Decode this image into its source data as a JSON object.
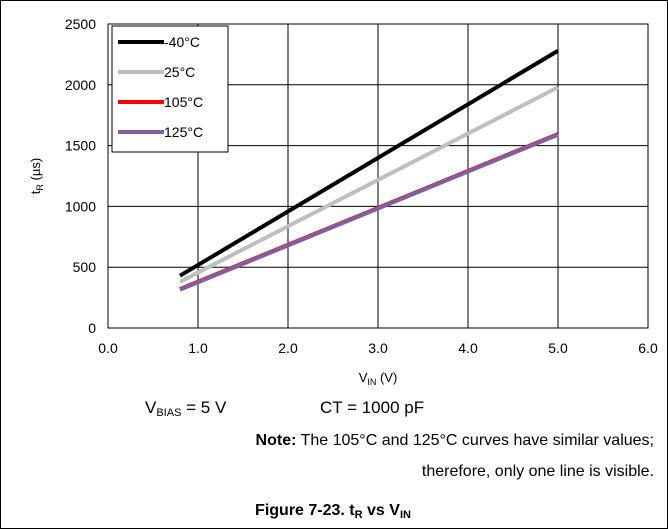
{
  "chart_data": {
    "type": "line",
    "xlim": [
      0.0,
      6.0
    ],
    "ylim": [
      0,
      2500
    ],
    "x_ticks": [
      "0.0",
      "1.0",
      "2.0",
      "3.0",
      "4.0",
      "5.0",
      "6.0"
    ],
    "y_ticks": [
      "0",
      "500",
      "1000",
      "1500",
      "2000",
      "2500"
    ],
    "x_tick_values": [
      0,
      1,
      2,
      3,
      4,
      5,
      6
    ],
    "y_tick_values": [
      0,
      500,
      1000,
      1500,
      2000,
      2500
    ],
    "xlabel": {
      "main": "V",
      "sub": "IN",
      "unit": " (V)"
    },
    "ylabel": {
      "main": "t",
      "sub": "R",
      "unit": " (µs)"
    },
    "grid": true,
    "legend_position": "top-left",
    "series": [
      {
        "name": "-40°C",
        "color": "#000000",
        "x": [
          0.8,
          5.0
        ],
        "y": [
          430,
          2280
        ]
      },
      {
        "name": "25°C",
        "color": "#bfbfbf",
        "x": [
          0.8,
          5.0
        ],
        "y": [
          380,
          1980
        ]
      },
      {
        "name": "105°C",
        "color": "#ff0000",
        "x": [
          0.8,
          5.0
        ],
        "y": [
          320,
          1595
        ]
      },
      {
        "name": "125°C",
        "color": "#7f5fa0",
        "x": [
          0.8,
          5.0
        ],
        "y": [
          315,
          1590
        ]
      }
    ]
  },
  "conditions": {
    "vbias_main": "V",
    "vbias_sub": "BIAS",
    "vbias_value": " = 5 V",
    "ct": "CT = 1000 pF"
  },
  "note": {
    "label": "Note:",
    "line1": " The 105°C and 125°C curves have similar values;",
    "line2": "therefore, only one line is visible."
  },
  "caption": {
    "prefix": "Figure 7-23. t",
    "t_sub": "R",
    "mid": " vs V",
    "v_sub": "IN"
  }
}
